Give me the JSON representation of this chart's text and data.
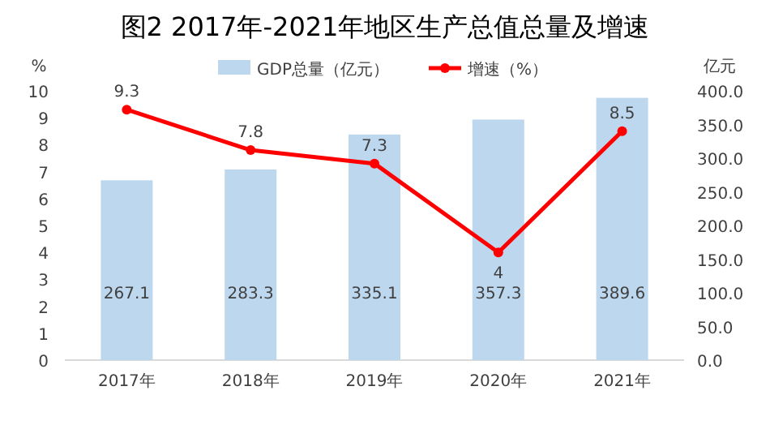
{
  "chart_data": {
    "type": "bar",
    "title": "图2  2017年-2021年地区生产总值总量及增速",
    "categories": [
      "2017年",
      "2018年",
      "2019年",
      "2020年",
      "2021年"
    ],
    "series": [
      {
        "name": "GDP总量（亿元）",
        "axis": "y2",
        "color": "#bdd7ee",
        "values": [
          267.1,
          283.3,
          335.1,
          357.3,
          389.6
        ]
      },
      {
        "name": "增速（%）",
        "type": "line",
        "axis": "y",
        "color": "#ff0000",
        "values": [
          9.3,
          7.8,
          7.3,
          4,
          8.5
        ]
      }
    ],
    "ylabel": "%",
    "y2label": "亿元",
    "ylim": [
      0,
      10
    ],
    "yticks": [
      0,
      1,
      2,
      3,
      4,
      5,
      6,
      7,
      8,
      9,
      10
    ],
    "y2lim": [
      0,
      400
    ],
    "y2ticks": [
      {
        "value": 0,
        "label": "0.0"
      },
      {
        "value": 50,
        "label": "50.0"
      },
      {
        "value": 100,
        "label": "100.0"
      },
      {
        "value": 150,
        "label": "150.0"
      },
      {
        "value": 200,
        "label": "200.0"
      },
      {
        "value": 250,
        "label": "250.0"
      },
      {
        "value": 300,
        "label": "300.0"
      },
      {
        "value": 350,
        "label": "350.0"
      },
      {
        "value": 400,
        "label": "400.0"
      }
    ],
    "data_labels": true,
    "legend": "top",
    "marker": "circle",
    "grid": false
  }
}
